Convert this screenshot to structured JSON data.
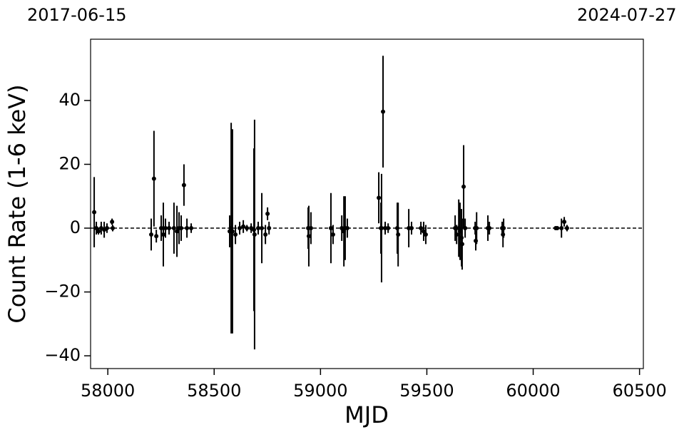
{
  "chart_data": {
    "type": "errorbar_scatter",
    "top_left_label": "2017-06-15",
    "top_right_label": "2024-07-27",
    "xlabel": "MJD",
    "ylabel": "Count Rate (1-6 keV)",
    "color": "#000000",
    "hline": 0,
    "xlim": [
      57919,
      60518
    ],
    "ylim": [
      -44,
      59.2
    ],
    "xticks": [
      58000,
      58500,
      59000,
      59500,
      60000,
      60500
    ],
    "yticks": [
      {
        "value": -40,
        "label": "−40"
      },
      {
        "value": -20,
        "label": "−20"
      },
      0,
      20,
      40
    ],
    "x": [
      57936,
      57946,
      57956,
      57969,
      57983,
      57996,
      58020,
      58023,
      58204,
      58217,
      58228,
      58251,
      58261,
      58271,
      58288,
      58311,
      58325,
      58335,
      58345,
      58358,
      58372,
      58392,
      58573,
      58580,
      58586,
      58600,
      58620,
      58637,
      58654,
      58674,
      58687,
      58690,
      58707,
      58724,
      58741,
      58751,
      58758,
      58942,
      58945,
      58955,
      59049,
      59059,
      59100,
      59110,
      59116,
      59126,
      59274,
      59284,
      59287,
      59294,
      59304,
      59318,
      59361,
      59365,
      59415,
      59428,
      59472,
      59485,
      59495,
      59633,
      59640,
      59650,
      59656,
      59663,
      59666,
      59673,
      59680,
      59727,
      59730,
      59734,
      59787,
      59794,
      59854,
      59858,
      59861,
      60106,
      60113,
      60133,
      60146,
      60159
    ],
    "values": [
      5,
      0,
      -1,
      0,
      -0.5,
      0,
      2,
      0,
      -2,
      15.5,
      -2.5,
      0,
      -2,
      0,
      0,
      0,
      -1,
      0,
      0,
      13.5,
      0,
      0,
      -1,
      0,
      -1,
      -2,
      0,
      0.5,
      0,
      0,
      -0.5,
      -2,
      0,
      0,
      -2,
      4.5,
      0,
      0,
      -2.5,
      0,
      0,
      -2,
      0,
      -1,
      0,
      0,
      9.5,
      0,
      0,
      36.5,
      0,
      0,
      0,
      -2,
      0,
      0,
      0,
      -1,
      -2,
      0,
      -2,
      0,
      -1,
      -3,
      -5,
      13,
      0,
      0,
      -4,
      0,
      0,
      0,
      0,
      -2,
      0,
      0,
      0,
      0,
      2,
      0
    ],
    "errors": [
      11,
      2,
      1,
      2,
      2.5,
      1.5,
      1,
      1,
      5,
      15,
      2,
      4,
      10,
      3,
      2,
      8,
      8,
      5,
      4,
      6.5,
      3,
      1.5,
      5,
      33,
      32,
      3,
      2,
      2,
      1,
      1.5,
      25.5,
      36,
      2,
      11,
      3,
      2,
      2,
      6.5,
      9.5,
      5,
      11,
      3,
      4,
      11,
      10,
      3,
      8,
      8,
      17,
      17.5,
      2,
      1.5,
      8,
      10,
      6,
      2,
      2,
      3,
      3,
      4,
      3,
      9,
      9,
      9,
      8,
      13,
      3,
      2,
      3,
      5,
      4,
      2,
      2,
      4,
      3,
      0.5,
      0.5,
      3,
      1.5,
      1
    ]
  }
}
